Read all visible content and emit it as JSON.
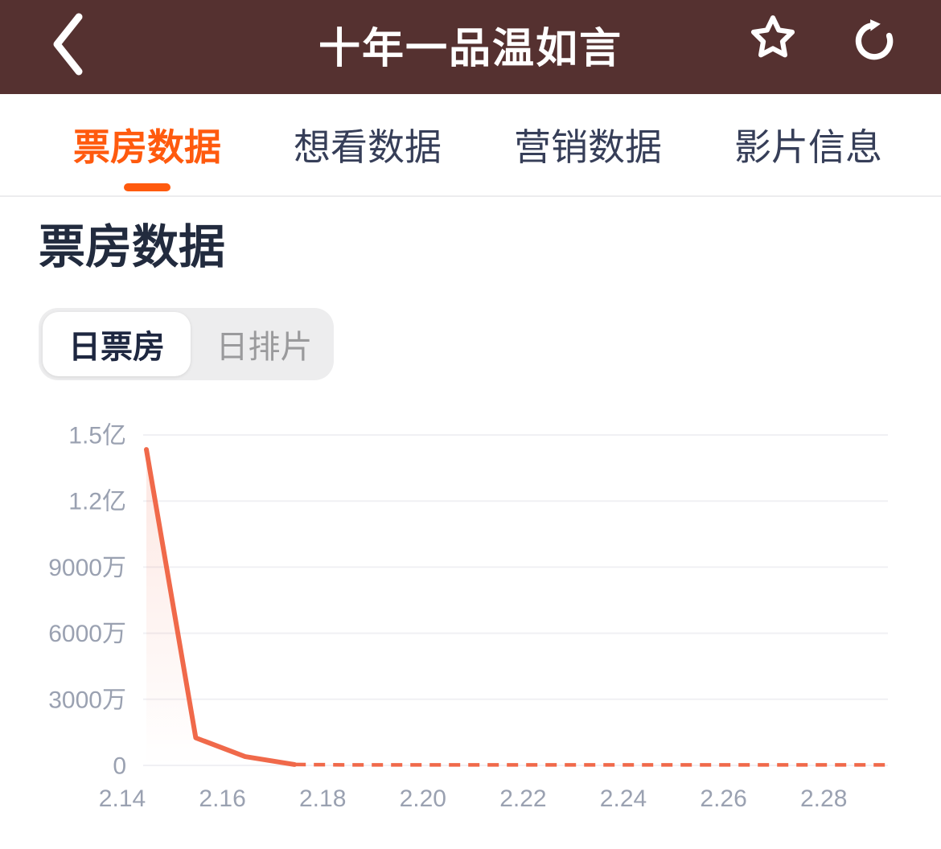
{
  "header": {
    "title": "十年一品温如言",
    "back_icon": "chevron-left",
    "favorite_icon": "star-outline",
    "refresh_icon": "refresh-circular-arrow"
  },
  "tabs": {
    "items": [
      {
        "label": "票房数据",
        "active": true
      },
      {
        "label": "想看数据",
        "active": false
      },
      {
        "label": "营销数据",
        "active": false
      },
      {
        "label": "影片信息",
        "active": false
      }
    ]
  },
  "section": {
    "title": "票房数据"
  },
  "toggle": {
    "options": [
      {
        "label": "日票房",
        "selected": true
      },
      {
        "label": "日排片",
        "selected": false
      }
    ]
  },
  "colors": {
    "header-bg": "#553130",
    "accent": "#FF5A0E",
    "line": "#F0694A",
    "tab-inactive": "#363E58",
    "heading": "#222B3E",
    "axis-text": "#9AA1B1",
    "grid": "#F0F0F4",
    "toggle-bg": "#EDEDEE",
    "toggle-inactive-text": "#9A9A9C",
    "toggle-active-text": "#1E2740"
  },
  "chart_data": {
    "type": "line",
    "title": "日票房",
    "x_tick_labels": [
      "2.14",
      "2.16",
      "2.18",
      "2.20",
      "2.22",
      "2.24",
      "2.26",
      "2.28"
    ],
    "y_tick_labels": [
      "1.5亿",
      "1.2亿",
      "9000万",
      "6000万",
      "3000万",
      "0"
    ],
    "y_max_wan": 15000,
    "y_min_wan": 0,
    "grid": "horizontal-gridlines-only",
    "legend": "none",
    "line_color": "#F0694A",
    "area_gradient_top": "rgba(240,105,74,0.16)",
    "area_gradient_bottom": "rgba(240,105,74,0)",
    "solid_series": {
      "style": "solid",
      "days": [
        "2.14",
        "2.15",
        "2.16",
        "2.17"
      ],
      "values_wan": [
        14340,
        1250,
        400,
        40
      ]
    },
    "dashed_series": {
      "style": "dashed",
      "days": [
        "2.17",
        "2.18",
        "2.19",
        "2.20",
        "2.21",
        "2.22",
        "2.23",
        "2.24",
        "2.25",
        "2.26",
        "2.27",
        "2.28",
        "2.29"
      ],
      "values_wan": [
        40,
        25,
        25,
        25,
        25,
        25,
        25,
        25,
        25,
        25,
        25,
        25,
        25
      ]
    }
  }
}
